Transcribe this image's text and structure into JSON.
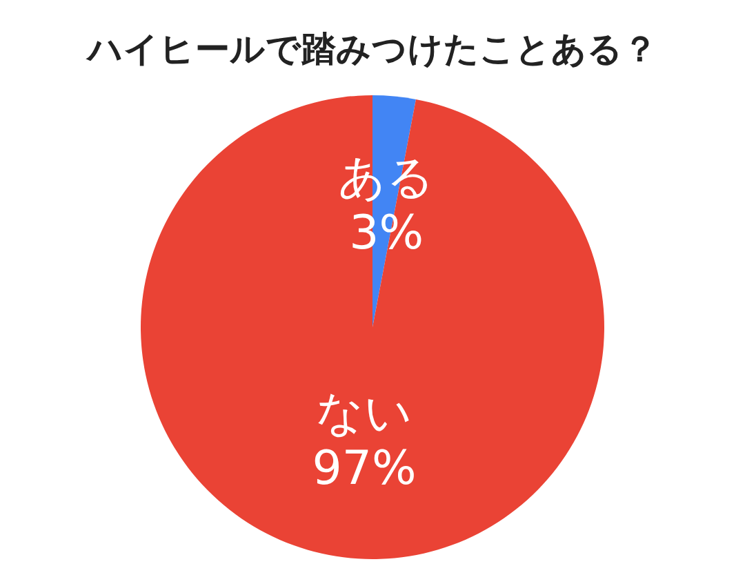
{
  "chart_data": {
    "type": "pie",
    "title": "ハイヒールで踏みつけたことある？",
    "categories": [
      "ある",
      "ない"
    ],
    "values": [
      3,
      97
    ],
    "colors": [
      "#4285f4",
      "#ea4335"
    ],
    "value_labels": [
      "3%",
      "97%"
    ]
  }
}
